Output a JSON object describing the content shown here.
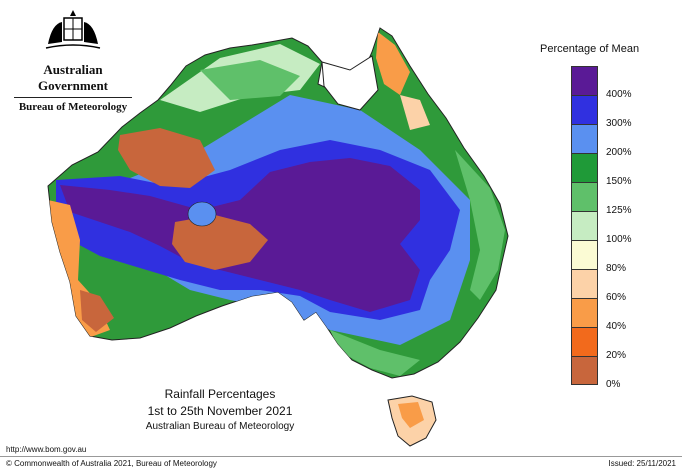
{
  "header": {
    "government": "Australian Government",
    "bureau": "Bureau of Meteorology"
  },
  "legend": {
    "title": "Percentage of Mean",
    "bands": [
      {
        "label": "400%",
        "color": "#5a1a96"
      },
      {
        "label": "300%",
        "color": "#3030e0"
      },
      {
        "label": "200%",
        "color": "#5a90f0"
      },
      {
        "label": "150%",
        "color": "#1f9a38"
      },
      {
        "label": "125%",
        "color": "#5fc06a"
      },
      {
        "label": "100%",
        "color": "#c6ecc2"
      },
      {
        "label": "80%",
        "color": "#fbfbd4"
      },
      {
        "label": "60%",
        "color": "#fcd2a8"
      },
      {
        "label": "40%",
        "color": "#f99c48"
      },
      {
        "label": "20%",
        "color": "#f26a1c"
      },
      {
        "label": "0%",
        "color": "#c8663c"
      }
    ]
  },
  "caption": {
    "title": "Rainfall Percentages",
    "period": "1st to 25th November 2021",
    "agency": "Australian Bureau of Meteorology"
  },
  "footer": {
    "url": "http://www.bom.gov.au",
    "copyright": "© Commonwealth of Australia 2021, Bureau of Meteorology",
    "issued": "Issued: 25/11/2021"
  }
}
